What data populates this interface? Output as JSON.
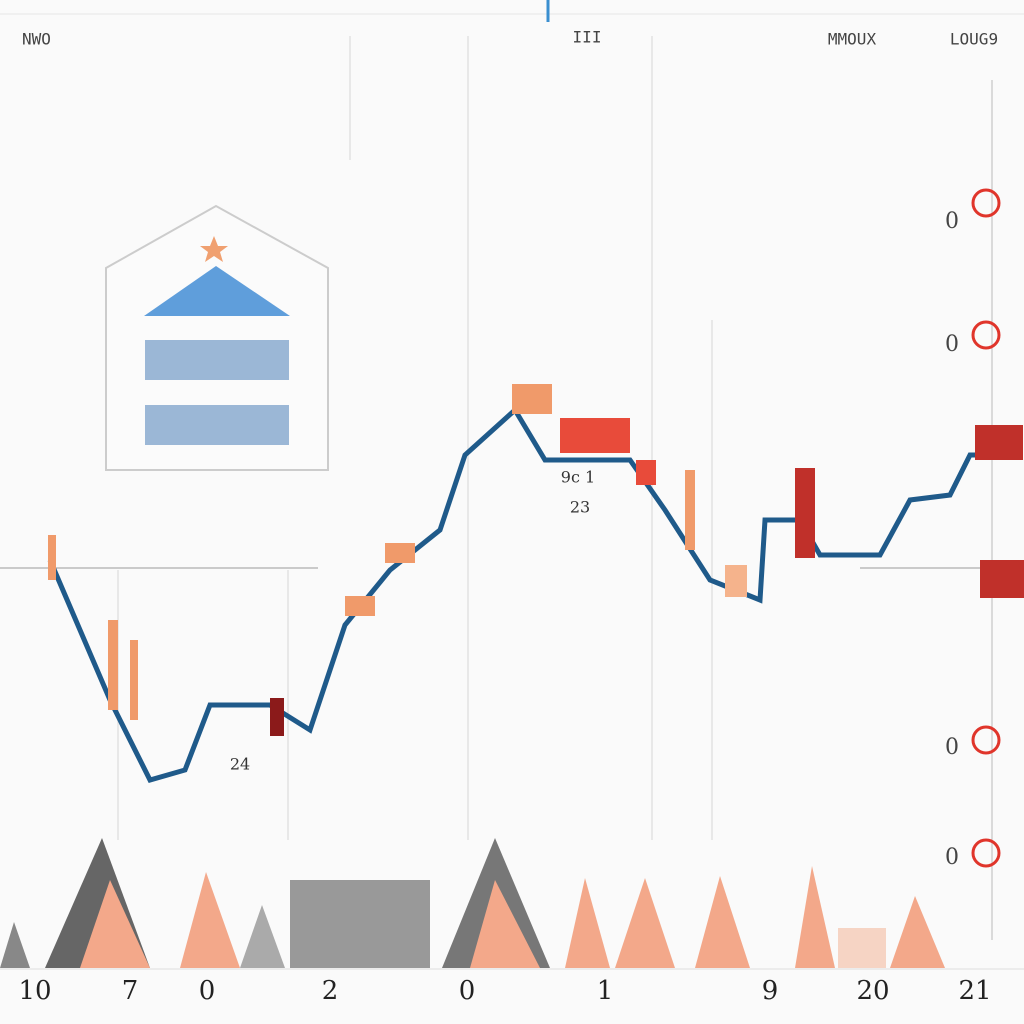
{
  "header": {
    "left": "NWO",
    "center": "III",
    "right_label": "MMOUX",
    "right_value": "LOUG9"
  },
  "annotations": [
    "9c 1",
    "23",
    "24"
  ],
  "axis_markers": [
    "0",
    "0",
    "0",
    "0"
  ],
  "x_labels": [
    "10",
    "7",
    "0",
    "2",
    "0",
    "1",
    "9",
    "20",
    "21"
  ]
}
